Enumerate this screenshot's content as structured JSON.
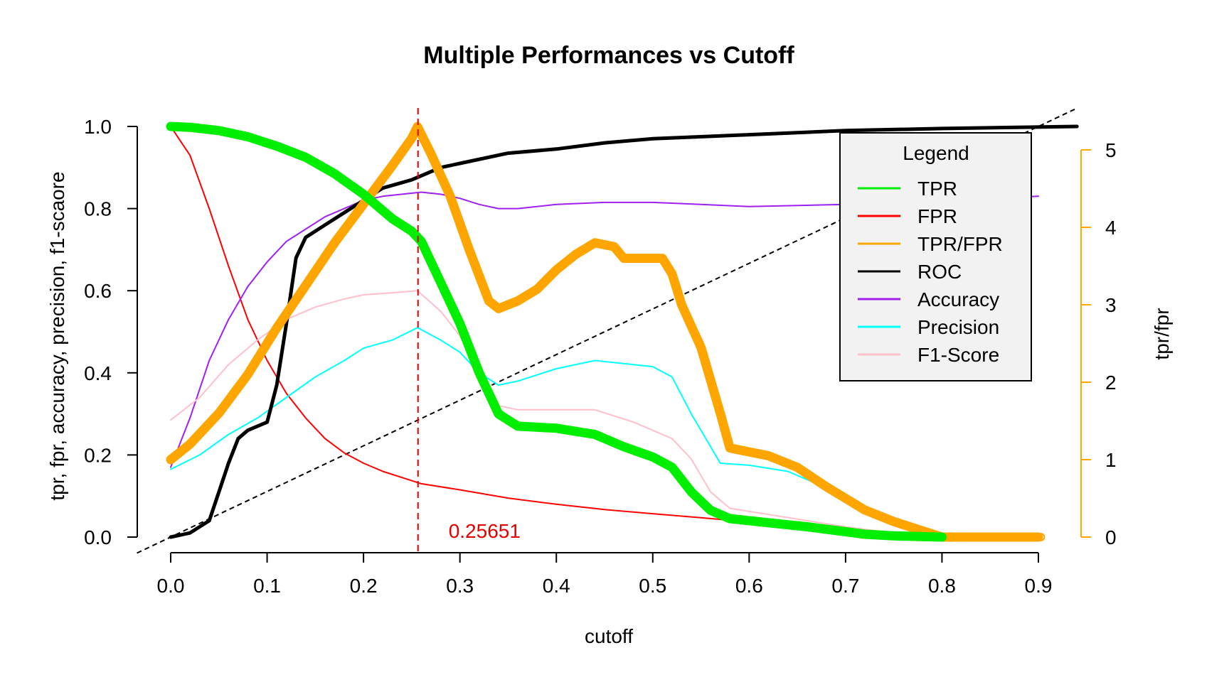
{
  "chart_data": {
    "type": "line",
    "title": "Multiple Performances vs Cutoff",
    "xlabel": "cutoff",
    "ylabel": "tpr, fpr, accuracy, precision, f1-scaore",
    "y2label": "tpr/fpr",
    "xlim": [
      0.0,
      0.9
    ],
    "ylim": [
      0.0,
      1.0
    ],
    "y2lim": [
      0,
      5
    ],
    "xticks": [
      "0.0",
      "0.1",
      "0.2",
      "0.3",
      "0.4",
      "0.5",
      "0.6",
      "0.7",
      "0.8",
      "0.9"
    ],
    "yticks": [
      "0.0",
      "0.2",
      "0.4",
      "0.6",
      "0.8",
      "1.0"
    ],
    "y2ticks": [
      "0",
      "1",
      "2",
      "3",
      "4",
      "5"
    ],
    "cutoff_line": {
      "x": 0.25651,
      "label": "0.25651",
      "color": "#e00000"
    },
    "diagonal_reference": {
      "from": [
        0,
        0
      ],
      "to": [
        0.9,
        1.0
      ]
    },
    "legend": {
      "title": "Legend",
      "position": "top-right"
    },
    "series": [
      {
        "name": "TPR",
        "color": "#00ee00",
        "axis": "left",
        "style": "thick",
        "x": [
          0.0,
          0.02,
          0.05,
          0.08,
          0.11,
          0.14,
          0.17,
          0.2,
          0.23,
          0.25,
          0.26,
          0.28,
          0.3,
          0.32,
          0.34,
          0.36,
          0.4,
          0.44,
          0.47,
          0.5,
          0.52,
          0.54,
          0.56,
          0.58,
          0.62,
          0.66,
          0.7,
          0.72,
          0.75,
          0.78,
          0.8
        ],
        "y": [
          1.0,
          0.998,
          0.99,
          0.975,
          0.952,
          0.925,
          0.885,
          0.835,
          0.775,
          0.745,
          0.72,
          0.62,
          0.52,
          0.4,
          0.3,
          0.27,
          0.265,
          0.25,
          0.22,
          0.195,
          0.17,
          0.11,
          0.065,
          0.045,
          0.035,
          0.025,
          0.013,
          0.007,
          0.003,
          0.001,
          0.0
        ]
      },
      {
        "name": "FPR",
        "color": "#ff0000",
        "axis": "left",
        "style": "thin",
        "x": [
          0.0,
          0.02,
          0.04,
          0.06,
          0.08,
          0.1,
          0.12,
          0.14,
          0.16,
          0.18,
          0.2,
          0.22,
          0.24,
          0.26,
          0.3,
          0.35,
          0.4,
          0.45,
          0.5,
          0.55,
          0.6,
          0.65,
          0.7,
          0.75,
          0.8
        ],
        "y": [
          1.0,
          0.93,
          0.8,
          0.66,
          0.53,
          0.43,
          0.35,
          0.29,
          0.24,
          0.205,
          0.18,
          0.16,
          0.145,
          0.13,
          0.115,
          0.095,
          0.08,
          0.067,
          0.057,
          0.047,
          0.037,
          0.027,
          0.015,
          0.005,
          0.0
        ]
      },
      {
        "name": "TPR/FPR",
        "color": "#ffa500",
        "axis": "right",
        "style": "thick",
        "x": [
          0.0,
          0.02,
          0.05,
          0.08,
          0.11,
          0.14,
          0.17,
          0.2,
          0.23,
          0.25,
          0.256,
          0.27,
          0.29,
          0.31,
          0.33,
          0.34,
          0.36,
          0.38,
          0.4,
          0.42,
          0.44,
          0.46,
          0.47,
          0.49,
          0.51,
          0.52,
          0.53,
          0.55,
          0.57,
          0.58,
          0.6,
          0.62,
          0.65,
          0.68,
          0.7,
          0.72,
          0.75,
          0.78,
          0.8,
          0.85,
          0.89,
          0.9
        ],
        "y": [
          1.0,
          1.2,
          1.6,
          2.1,
          2.7,
          3.25,
          3.8,
          4.3,
          4.8,
          5.15,
          5.3,
          4.95,
          4.4,
          3.7,
          3.05,
          2.95,
          3.05,
          3.2,
          3.45,
          3.65,
          3.8,
          3.75,
          3.6,
          3.6,
          3.6,
          3.4,
          3.0,
          2.45,
          1.6,
          1.15,
          1.1,
          1.05,
          0.9,
          0.65,
          0.5,
          0.35,
          0.2,
          0.08,
          0.0,
          0.0,
          0.0,
          0.0
        ]
      },
      {
        "name": "ROC",
        "color": "#000000",
        "axis": "left",
        "style": "medium",
        "x": [
          0.0,
          0.02,
          0.04,
          0.05,
          0.06,
          0.07,
          0.08,
          0.1,
          0.11,
          0.12,
          0.13,
          0.14,
          0.16,
          0.18,
          0.2,
          0.22,
          0.25,
          0.28,
          0.3,
          0.35,
          0.4,
          0.45,
          0.5,
          0.6,
          0.7,
          0.8,
          0.94
        ],
        "y": [
          0.0,
          0.01,
          0.04,
          0.11,
          0.18,
          0.24,
          0.26,
          0.28,
          0.37,
          0.52,
          0.68,
          0.73,
          0.76,
          0.79,
          0.82,
          0.85,
          0.87,
          0.9,
          0.91,
          0.935,
          0.945,
          0.96,
          0.97,
          0.98,
          0.99,
          0.995,
          1.0
        ]
      },
      {
        "name": "Accuracy",
        "color": "#a020f0",
        "axis": "left",
        "style": "thin",
        "x": [
          0.0,
          0.02,
          0.04,
          0.06,
          0.08,
          0.1,
          0.12,
          0.14,
          0.16,
          0.18,
          0.2,
          0.22,
          0.24,
          0.26,
          0.28,
          0.3,
          0.32,
          0.34,
          0.36,
          0.4,
          0.45,
          0.5,
          0.55,
          0.6,
          0.7,
          0.8,
          0.9
        ],
        "y": [
          0.17,
          0.29,
          0.43,
          0.53,
          0.61,
          0.67,
          0.72,
          0.75,
          0.78,
          0.8,
          0.82,
          0.83,
          0.835,
          0.84,
          0.835,
          0.825,
          0.81,
          0.8,
          0.8,
          0.81,
          0.815,
          0.815,
          0.81,
          0.805,
          0.81,
          0.82,
          0.83
        ]
      },
      {
        "name": "Precision",
        "color": "#00ffff",
        "axis": "left",
        "style": "thin",
        "x": [
          0.0,
          0.03,
          0.06,
          0.09,
          0.12,
          0.15,
          0.18,
          0.2,
          0.23,
          0.256,
          0.28,
          0.3,
          0.32,
          0.34,
          0.36,
          0.4,
          0.44,
          0.48,
          0.5,
          0.52,
          0.54,
          0.56,
          0.57,
          0.6,
          0.64,
          0.68,
          0.7
        ],
        "y": [
          0.165,
          0.2,
          0.25,
          0.29,
          0.34,
          0.39,
          0.43,
          0.46,
          0.48,
          0.51,
          0.48,
          0.45,
          0.4,
          0.37,
          0.38,
          0.41,
          0.43,
          0.42,
          0.415,
          0.39,
          0.3,
          0.22,
          0.18,
          0.175,
          0.16,
          0.12,
          0.09
        ]
      },
      {
        "name": "F1-Score",
        "color": "#ffc0cb",
        "axis": "left",
        "style": "thin",
        "x": [
          0.0,
          0.03,
          0.06,
          0.09,
          0.12,
          0.15,
          0.18,
          0.2,
          0.23,
          0.256,
          0.28,
          0.3,
          0.32,
          0.34,
          0.36,
          0.4,
          0.44,
          0.48,
          0.52,
          0.54,
          0.56,
          0.58,
          0.62,
          0.66,
          0.7,
          0.75,
          0.78
        ],
        "y": [
          0.285,
          0.34,
          0.42,
          0.48,
          0.53,
          0.56,
          0.58,
          0.59,
          0.595,
          0.6,
          0.55,
          0.49,
          0.4,
          0.32,
          0.31,
          0.31,
          0.31,
          0.28,
          0.24,
          0.19,
          0.11,
          0.07,
          0.055,
          0.04,
          0.025,
          0.01,
          0.005
        ]
      }
    ]
  }
}
